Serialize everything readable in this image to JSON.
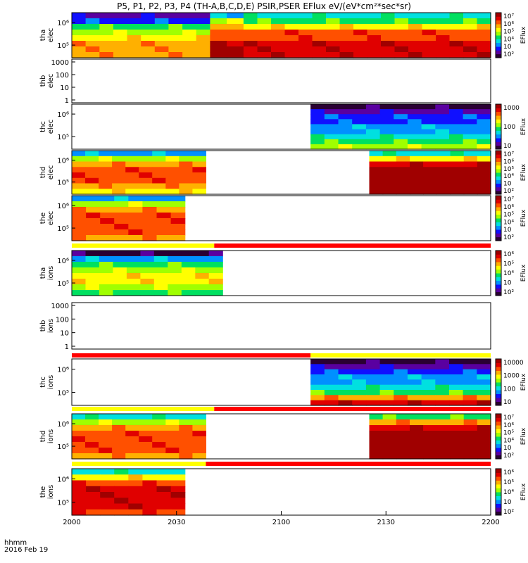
{
  "title": "P5, P1, P2, P3, P4 (TH-A,B,C,D,E) PSIR,PSER EFlux eV/(eV*cm²*sec*sr)",
  "footer": {
    "line1": "hhmm",
    "line2": "2016 Feb 19"
  },
  "colors": {
    "colorbar_stops": [
      "#2a0033",
      "#5a00a0",
      "#1010ff",
      "#0090ff",
      "#00e0e0",
      "#00e060",
      "#a0ff00",
      "#ffff00",
      "#ffb000",
      "#ff5000",
      "#e00000",
      "#a00000"
    ],
    "mode_bar_yellow": "#ffff00",
    "mode_bar_red": "#ff0000"
  },
  "chart_data": {
    "type": "heatmap",
    "x": {
      "ticks": [
        "2000",
        "2030",
        "2100",
        "2130",
        "2200"
      ],
      "range": [
        "20:00",
        "22:00"
      ]
    },
    "panels": [
      {
        "ylabel": [
          "tha",
          "elec"
        ],
        "yticks": [
          "10⁶",
          "10⁵"
        ],
        "ylog": true,
        "cbar_ticks": [
          "10⁷",
          "10⁶",
          "10⁵",
          "10⁴",
          "10⁳",
          "10²"
        ],
        "cbar_label": "EFlux",
        "data": [
          {
            "t": [
              0.0,
              0.33
            ],
            "rows": [
              1,
              2,
              5,
              6,
              7,
              8,
              8,
              8
            ]
          },
          {
            "t": [
              0.33,
              0.41
            ],
            "rows": [
              3,
              6,
              8,
              9,
              9,
              10,
              11,
              11
            ]
          },
          {
            "t": [
              0.41,
              1.0
            ],
            "rows": [
              4,
              5,
              7,
              9,
              9,
              10,
              10,
              10
            ]
          }
        ]
      },
      {
        "ylabel": [
          "thb",
          "elec"
        ],
        "yticks": [
          "1000",
          "100",
          "10",
          "1"
        ],
        "ylog": true,
        "empty": true
      },
      {
        "ylabel": [
          "thc",
          "elec"
        ],
        "yticks": [
          "10⁶",
          "10⁵"
        ],
        "ylog": true,
        "cbar_ticks": [
          "1000",
          "100",
          "10"
        ],
        "cbar_label": "EFlux",
        "data": [
          {
            "t": [
              0.57,
              1.0
            ],
            "rows": [
              0,
              1,
              2,
              2,
              3,
              3,
              4,
              5,
              6
            ]
          }
        ]
      },
      {
        "ylabel": [
          "thd",
          "elec"
        ],
        "yticks": [
          "10⁶",
          "10⁵"
        ],
        "ylog": true,
        "cbar_ticks": [
          "10⁷",
          "10⁶",
          "10⁵",
          "10⁴",
          "10⁳",
          "10²"
        ],
        "cbar_label": "EFlux",
        "data": [
          {
            "t": [
              0.0,
              0.32
            ],
            "rows": [
              3,
              6,
              8,
              9,
              9,
              9,
              8,
              7
            ]
          },
          {
            "t": [
              0.71,
              1.0
            ],
            "rows": [
              4,
              7,
              10,
              11,
              11,
              11,
              11,
              11
            ]
          }
        ]
      },
      {
        "ylabel": [
          "the",
          "elec"
        ],
        "yticks": [
          "10⁶",
          "10⁵"
        ],
        "ylog": true,
        "cbar_ticks": [
          "10⁷",
          "10⁶",
          "10⁵",
          "10⁴",
          "10⁳",
          "10²"
        ],
        "cbar_label": "EFlux",
        "data": [
          {
            "t": [
              0.0,
              0.27
            ],
            "rows": [
              3,
              6,
              8,
              9,
              9,
              9,
              9,
              8
            ]
          }
        ]
      },
      {
        "ylabel": [
          "tha",
          "ions"
        ],
        "yticks": [
          "10⁶",
          "10⁵"
        ],
        "ylog": true,
        "cbar_ticks": [
          "10⁶",
          "10⁵",
          "10⁴",
          "10⁳",
          "10²"
        ],
        "cbar_label": "EFlux",
        "data": [
          {
            "t": [
              0.0,
              0.36
            ],
            "rows": [
              0,
              3,
              5,
              6,
              7,
              7,
              6,
              5
            ]
          }
        ]
      },
      {
        "ylabel": [
          "thb",
          "ions"
        ],
        "yticks": [
          "1000",
          "100",
          "10",
          "1"
        ],
        "ylog": true,
        "empty": true
      },
      {
        "ylabel": [
          "thc",
          "ions"
        ],
        "yticks": [
          "10⁶",
          "10⁵"
        ],
        "ylog": true,
        "cbar_ticks": [
          "10000",
          "1000",
          "100",
          "10"
        ],
        "cbar_label": "EFlux",
        "data": [
          {
            "t": [
              0.57,
              1.0
            ],
            "rows": [
              0,
              1,
              2,
              3,
              3,
              4,
              5,
              8,
              10
            ]
          }
        ]
      },
      {
        "ylabel": [
          "thd",
          "ions"
        ],
        "yticks": [
          "10⁶",
          "10⁵"
        ],
        "ylog": true,
        "cbar_ticks": [
          "10⁷",
          "10⁶",
          "10⁵",
          "10⁴",
          "10⁳",
          "10²"
        ],
        "cbar_label": "EFlux",
        "data": [
          {
            "t": [
              0.0,
              0.32
            ],
            "rows": [
              4,
              6,
              8,
              9,
              9,
              9,
              9,
              8
            ]
          },
          {
            "t": [
              0.71,
              1.0
            ],
            "rows": [
              5,
              8,
              10,
              11,
              11,
              11,
              11,
              11
            ]
          }
        ]
      },
      {
        "ylabel": [
          "the",
          "ions"
        ],
        "yticks": [
          "10⁶",
          "10⁵"
        ],
        "ylog": true,
        "cbar_ticks": [
          "10⁶",
          "10⁵",
          "10⁴",
          "10⁳",
          "10²"
        ],
        "cbar_label": "EFlux",
        "data": [
          {
            "t": [
              0.0,
              0.27
            ],
            "rows": [
              4,
              7,
              9,
              10,
              10,
              10,
              10,
              9
            ]
          }
        ]
      }
    ],
    "mode_bars": [
      {
        "after_panel": 4,
        "yellow_until": 0.34
      },
      {
        "after_panel": 6,
        "yellow_until": 0.0,
        "red_until": 0.57
      },
      {
        "after_panel": 7,
        "yellow_until": 0.34
      },
      {
        "after_panel": 8,
        "yellow_until": 0.32
      }
    ]
  }
}
